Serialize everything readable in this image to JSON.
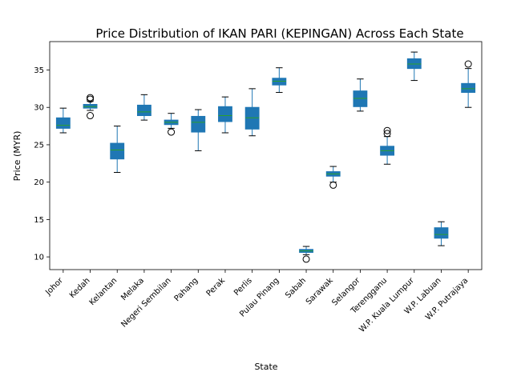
{
  "chart_data": {
    "type": "boxplot",
    "title": "Price Distribution of IKAN PARI (KEPINGAN) Across Each State",
    "xlabel": "State",
    "ylabel": "Price (MYR)",
    "ylim": [
      8.3,
      38.8
    ],
    "yticks": [
      10,
      15,
      20,
      25,
      30,
      35
    ],
    "grid": false,
    "legend": "none",
    "colors": {
      "box": "#1f77b4",
      "median": "#2ca02c",
      "whisker": "#1f77b4",
      "outlier": "#000000"
    },
    "categories": [
      "Johor",
      "Kedah",
      "Kelantan",
      "Melaka",
      "Negeri Sembilan",
      "Pahang",
      "Perak",
      "Perlis",
      "Pulau Pinang",
      "Sabah",
      "Sarawak",
      "Selangor",
      "Terengganu",
      "W.P. Kuala Lumpur",
      "W.P. Labuan",
      "W.P. Putrajaya"
    ],
    "boxes": [
      {
        "category": "Johor",
        "whislo": 26.6,
        "q1": 27.2,
        "med": 27.6,
        "q3": 28.6,
        "whishi": 29.9,
        "fliers": []
      },
      {
        "category": "Kedah",
        "whislo": 29.6,
        "q1": 29.9,
        "med": 30.1,
        "q3": 30.4,
        "whishi": 30.8,
        "fliers": [
          28.9,
          31.1,
          31.3
        ]
      },
      {
        "category": "Kelantan",
        "whislo": 21.3,
        "q1": 23.1,
        "med": 24.3,
        "q3": 25.2,
        "whishi": 27.5,
        "fliers": []
      },
      {
        "category": "Melaka",
        "whislo": 28.3,
        "q1": 28.9,
        "med": 29.4,
        "q3": 30.3,
        "whishi": 31.7,
        "fliers": []
      },
      {
        "category": "Negeri Sembilan",
        "whislo": 27.2,
        "q1": 27.7,
        "med": 28.0,
        "q3": 28.3,
        "whishi": 29.2,
        "fliers": [
          26.7
        ]
      },
      {
        "category": "Pahang",
        "whislo": 24.2,
        "q1": 26.7,
        "med": 28.0,
        "q3": 28.8,
        "whishi": 29.7,
        "fliers": []
      },
      {
        "category": "Perak",
        "whislo": 26.6,
        "q1": 28.1,
        "med": 28.9,
        "q3": 30.1,
        "whishi": 31.4,
        "fliers": []
      },
      {
        "category": "Perlis",
        "whislo": 26.2,
        "q1": 27.1,
        "med": 28.6,
        "q3": 30.0,
        "whishi": 32.5,
        "fliers": []
      },
      {
        "category": "Pulau Pinang",
        "whislo": 32.0,
        "q1": 33.0,
        "med": 33.5,
        "q3": 33.9,
        "whishi": 35.3,
        "fliers": []
      },
      {
        "category": "Sabah",
        "whislo": 10.3,
        "q1": 10.6,
        "med": 10.8,
        "q3": 11.0,
        "whishi": 11.4,
        "fliers": [
          9.7
        ]
      },
      {
        "category": "Sarawak",
        "whislo": 20.0,
        "q1": 20.8,
        "med": 21.1,
        "q3": 21.4,
        "whishi": 22.1,
        "fliers": [
          19.6
        ]
      },
      {
        "category": "Selangor",
        "whislo": 29.5,
        "q1": 30.1,
        "med": 31.2,
        "q3": 32.2,
        "whishi": 33.8,
        "fliers": []
      },
      {
        "category": "Terengganu",
        "whislo": 22.4,
        "q1": 23.6,
        "med": 24.2,
        "q3": 24.8,
        "whishi": 26.1,
        "fliers": [
          26.5,
          26.9
        ]
      },
      {
        "category": "W.P. Kuala Lumpur",
        "whislo": 33.6,
        "q1": 35.2,
        "med": 35.8,
        "q3": 36.5,
        "whishi": 37.4,
        "fliers": []
      },
      {
        "category": "W.P. Labuan",
        "whislo": 11.5,
        "q1": 12.5,
        "med": 13.0,
        "q3": 13.9,
        "whishi": 14.7,
        "fliers": []
      },
      {
        "category": "W.P. Putrajaya",
        "whislo": 30.0,
        "q1": 32.0,
        "med": 32.5,
        "q3": 33.2,
        "whishi": 35.2,
        "fliers": [
          35.8
        ]
      }
    ]
  }
}
